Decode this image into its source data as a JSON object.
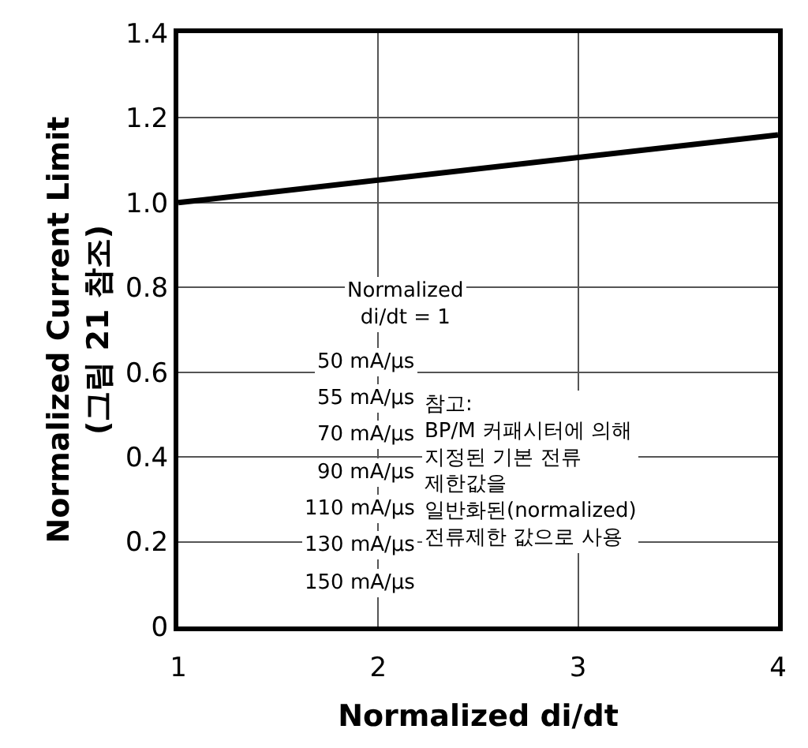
{
  "chart_data": {
    "type": "line",
    "xlabel": "Normalized di/dt",
    "ylabel": "Normalized Current Limit\n(그림 21 참조)",
    "x": [
      1,
      4
    ],
    "series": [
      {
        "color": "#000000",
        "values": [
          1.0,
          1.16
        ]
      }
    ],
    "xlim": [
      1,
      4
    ],
    "xticks": [
      1,
      2,
      3,
      4
    ],
    "ylim": [
      0,
      1.4
    ],
    "yticks": [
      0,
      0.2,
      0.4,
      0.6,
      0.8,
      {
        "value": 1,
        "label": "1.0"
      },
      1.2,
      1.4
    ],
    "grid": true,
    "marker": "none",
    "line_style": "solid",
    "annotations": [
      "Normalized\ndi/dt = 1",
      "50 mA/µs",
      "55 mA/µs",
      "70 mA/µs",
      "90 mA/µs",
      "110 mA/µs",
      "130 mA/µs",
      "150 mA/µs",
      "참고:\nBP/M 커패시터에 의해\n지정된 기본 전류\n제한값을\n일반화된(normalized)\n전류제한 값으로 사용"
    ]
  }
}
